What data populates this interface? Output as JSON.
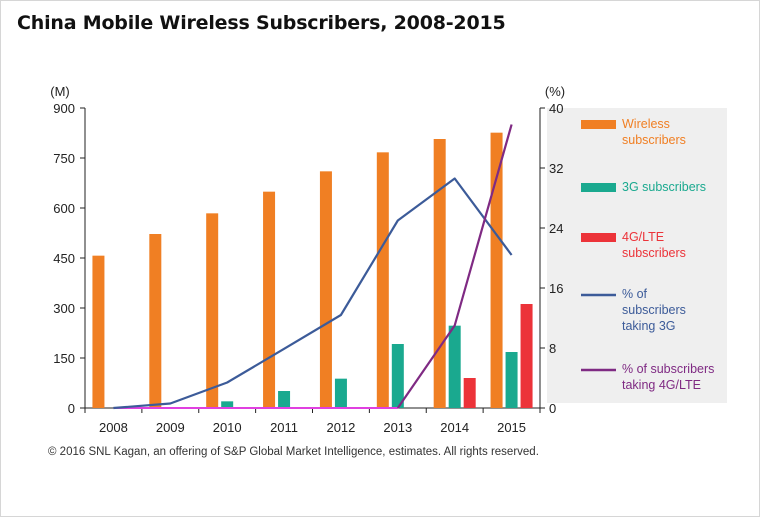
{
  "title": "China Mobile Wireless Subscribers, 2008-2015",
  "footnote": "© 2016 SNL Kagan, an offering of S&P Global Market Intelligence, estimates. All rights reserved.",
  "colors": {
    "wireless": "#f07f23",
    "g3": "#1aa98f",
    "lte": "#ec3339",
    "pct3g": "#3c5b99",
    "pct4g": "#7f2a83",
    "baseline": "#e040e0",
    "legend_bg": "#efefef"
  },
  "chart_data": {
    "type": "bar",
    "categories": [
      "2008",
      "2009",
      "2010",
      "2011",
      "2012",
      "2013",
      "2014",
      "2015"
    ],
    "left_axis": {
      "label": "(M)",
      "min": 0,
      "max": 900,
      "ticks": [
        "0",
        "150",
        "300",
        "450",
        "600",
        "750",
        "900"
      ]
    },
    "right_axis": {
      "label": "(%)",
      "min": 0,
      "max": 40,
      "ticks": [
        "0",
        "8",
        "16",
        "24",
        "32",
        "40"
      ]
    },
    "series": [
      {
        "name": "Wireless subscribers",
        "type": "bar",
        "axis": "left",
        "color": "#f07f23",
        "values": [
          457,
          522,
          584,
          649,
          710,
          767,
          807,
          826
        ]
      },
      {
        "name": "3G subscribers",
        "type": "bar",
        "axis": "left",
        "color": "#1aa98f",
        "values": [
          0,
          0,
          20,
          51,
          88,
          192,
          247,
          168
        ]
      },
      {
        "name": "4G/LTE subscribers",
        "type": "bar",
        "axis": "left",
        "color": "#ec3339",
        "values": [
          0,
          0,
          0,
          0,
          0,
          0,
          90,
          312
        ]
      },
      {
        "name": "% of subscribers taking 3G",
        "type": "line",
        "axis": "right",
        "color": "#3c5b99",
        "values": [
          0,
          0.6,
          3.4,
          7.9,
          12.4,
          25,
          30.6,
          20.4
        ]
      },
      {
        "name": "% of subscribers taking 4G/LTE",
        "type": "line",
        "axis": "right",
        "color": "#7f2a83",
        "values": [
          0,
          0,
          0,
          0,
          0,
          0,
          11,
          37.8
        ]
      }
    ],
    "legend": [
      {
        "lines": [
          "Wireless",
          "subscribers"
        ],
        "color": "#f07f23",
        "swatch": "bar"
      },
      {
        "lines": [
          "3G subscribers"
        ],
        "color": "#1aa98f",
        "swatch": "bar"
      },
      {
        "lines": [
          "4G/LTE",
          "subscribers"
        ],
        "color": "#ec3339",
        "swatch": "bar"
      },
      {
        "lines": [
          "% of",
          "subscribers",
          "taking 3G"
        ],
        "color": "#3c5b99",
        "swatch": "line"
      },
      {
        "lines": [
          "% of subscribers",
          "taking 4G/LTE"
        ],
        "color": "#7f2a83",
        "swatch": "line"
      }
    ],
    "legend_position": "right",
    "grid": false
  }
}
